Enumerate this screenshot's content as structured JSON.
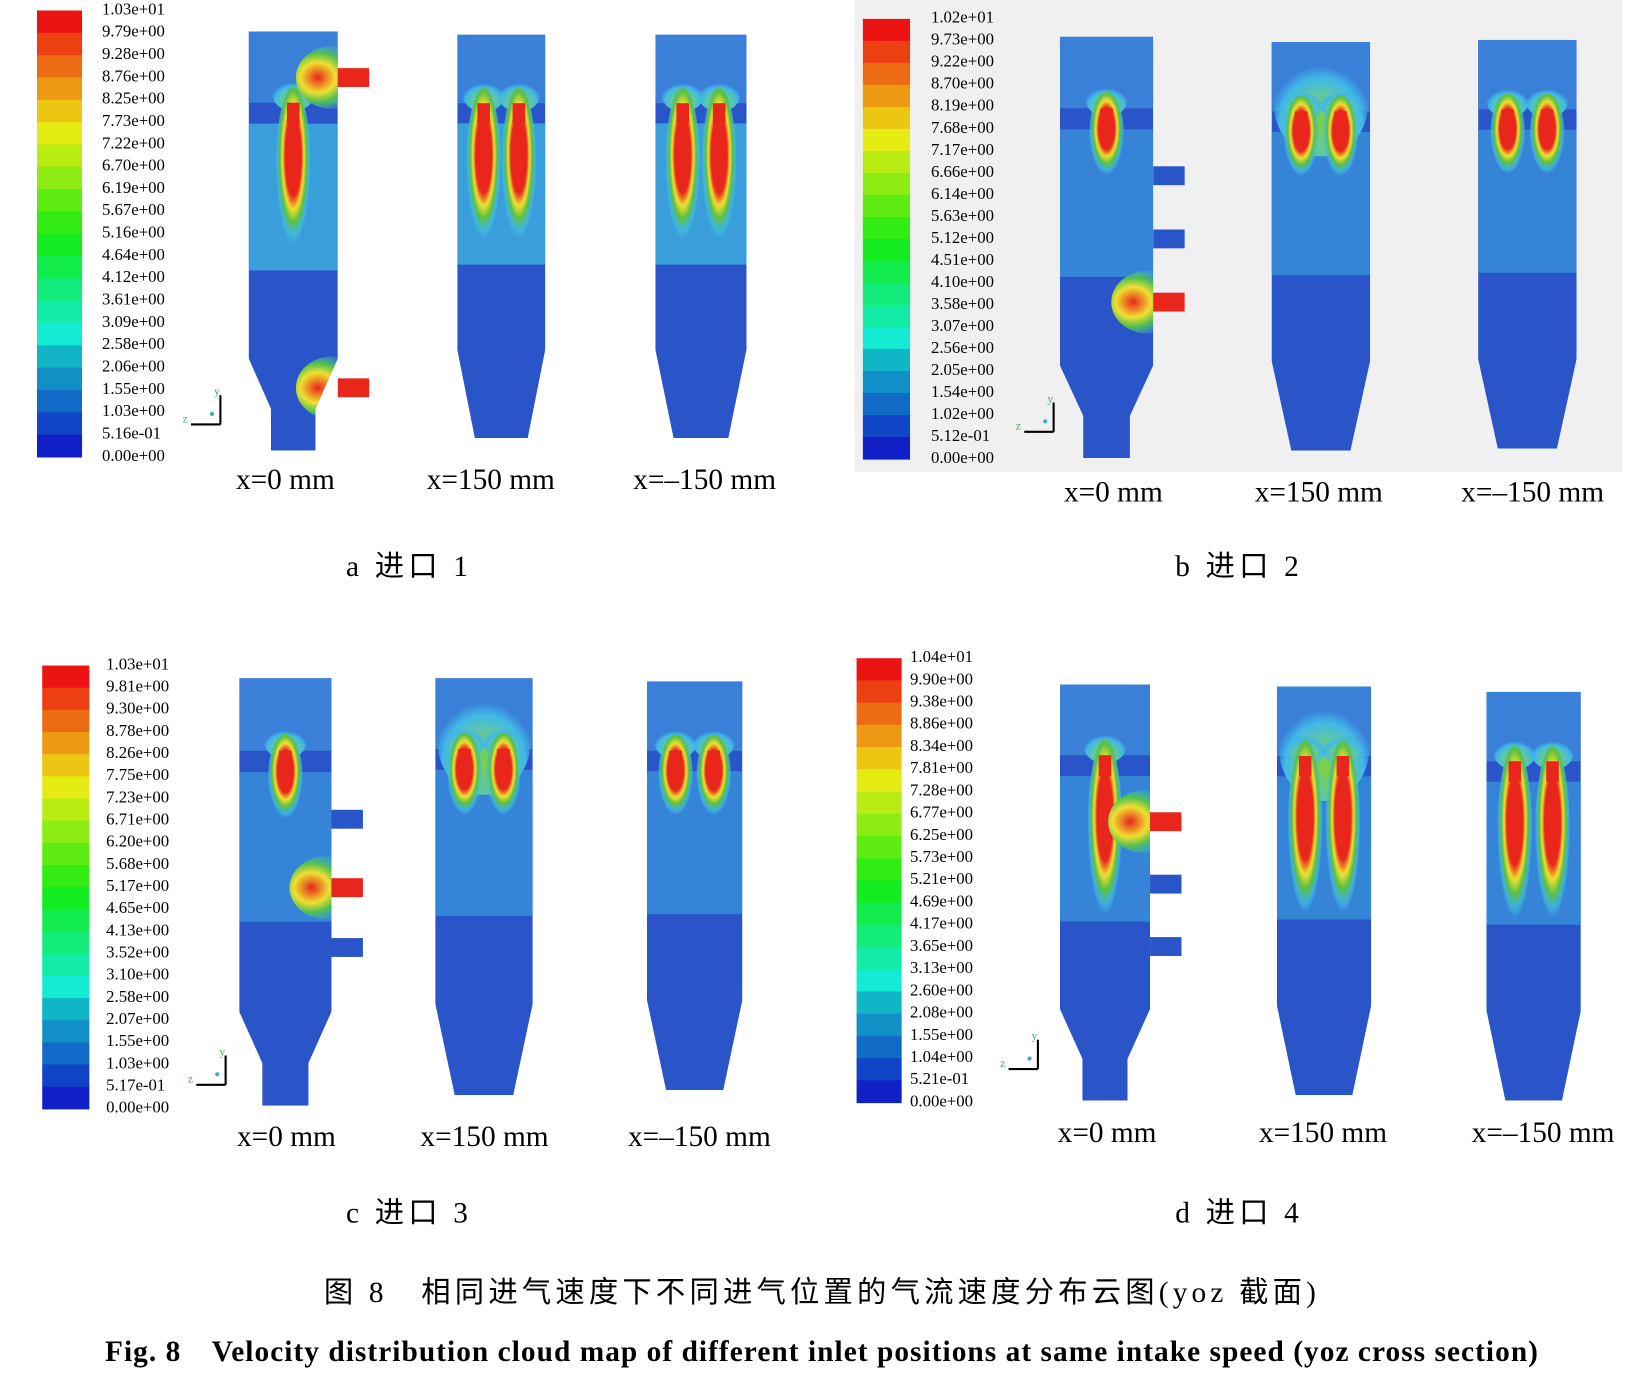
{
  "panels": [
    {
      "legend": [
        "1.03e+01",
        "9.79e+00",
        "9.28e+00",
        "8.76e+00",
        "8.25e+00",
        "7.73e+00",
        "7.22e+00",
        "6.70e+00",
        "6.19e+00",
        "5.67e+00",
        "5.16e+00",
        "4.64e+00",
        "4.12e+00",
        "3.61e+00",
        "3.09e+00",
        "2.58e+00",
        "2.06e+00",
        "1.55e+00",
        "1.03e+00",
        "5.16e-01",
        "0.00e+00"
      ],
      "triad": [
        "y",
        "z"
      ],
      "views": [
        "x=0 mm",
        "x=150 mm",
        "x=–150 mm"
      ],
      "caption": "a 进口 1"
    },
    {
      "legend": [
        "1.02e+01",
        "9.73e+00",
        "9.22e+00",
        "8.70e+00",
        "8.19e+00",
        "7.68e+00",
        "7.17e+00",
        "6.66e+00",
        "6.14e+00",
        "5.63e+00",
        "5.12e+00",
        "4.51e+00",
        "4.10e+00",
        "3.58e+00",
        "3.07e+00",
        "2.56e+00",
        "2.05e+00",
        "1.54e+00",
        "1.02e+00",
        "5.12e-01",
        "0.00e+00"
      ],
      "triad": [
        "y",
        "z"
      ],
      "views": [
        "x=0 mm",
        "x=150 mm",
        "x=–150 mm"
      ],
      "caption": "b 进口 2"
    },
    {
      "legend": [
        "1.03e+01",
        "9.81e+00",
        "9.30e+00",
        "8.78e+00",
        "8.26e+00",
        "7.75e+00",
        "7.23e+00",
        "6.71e+00",
        "6.20e+00",
        "5.68e+00",
        "5.17e+00",
        "4.65e+00",
        "4.13e+00",
        "3.52e+00",
        "3.10e+00",
        "2.58e+00",
        "2.07e+00",
        "1.55e+00",
        "1.03e+00",
        "5.17e-01",
        "0.00e+00"
      ],
      "triad": [
        "y",
        "z"
      ],
      "views": [
        "x=0 mm",
        "x=150 mm",
        "x=–150 mm"
      ],
      "caption": "c 进口 3"
    },
    {
      "legend": [
        "1.04e+01",
        "9.90e+00",
        "9.38e+00",
        "8.86e+00",
        "8.34e+00",
        "7.81e+00",
        "7.28e+00",
        "6.77e+00",
        "6.25e+00",
        "5.73e+00",
        "5.21e+00",
        "4.69e+00",
        "4.17e+00",
        "3.65e+00",
        "3.13e+00",
        "2.60e+00",
        "2.08e+00",
        "1.55e+00",
        "1.04e+00",
        "5.21e-01",
        "0.00e+00"
      ],
      "triad": [
        "y",
        "z"
      ],
      "views": [
        "x=0 mm",
        "x=150 mm",
        "x=–150 mm"
      ],
      "caption": "d 进口 4"
    }
  ],
  "figure_caption_cn": "图 8　相同进气速度下不同进气位置的气流速度分布云图(yoz 截面)",
  "figure_caption_en": "Fig. 8　Velocity distribution cloud map of different inlet positions at same intake speed (yoz cross section)"
}
